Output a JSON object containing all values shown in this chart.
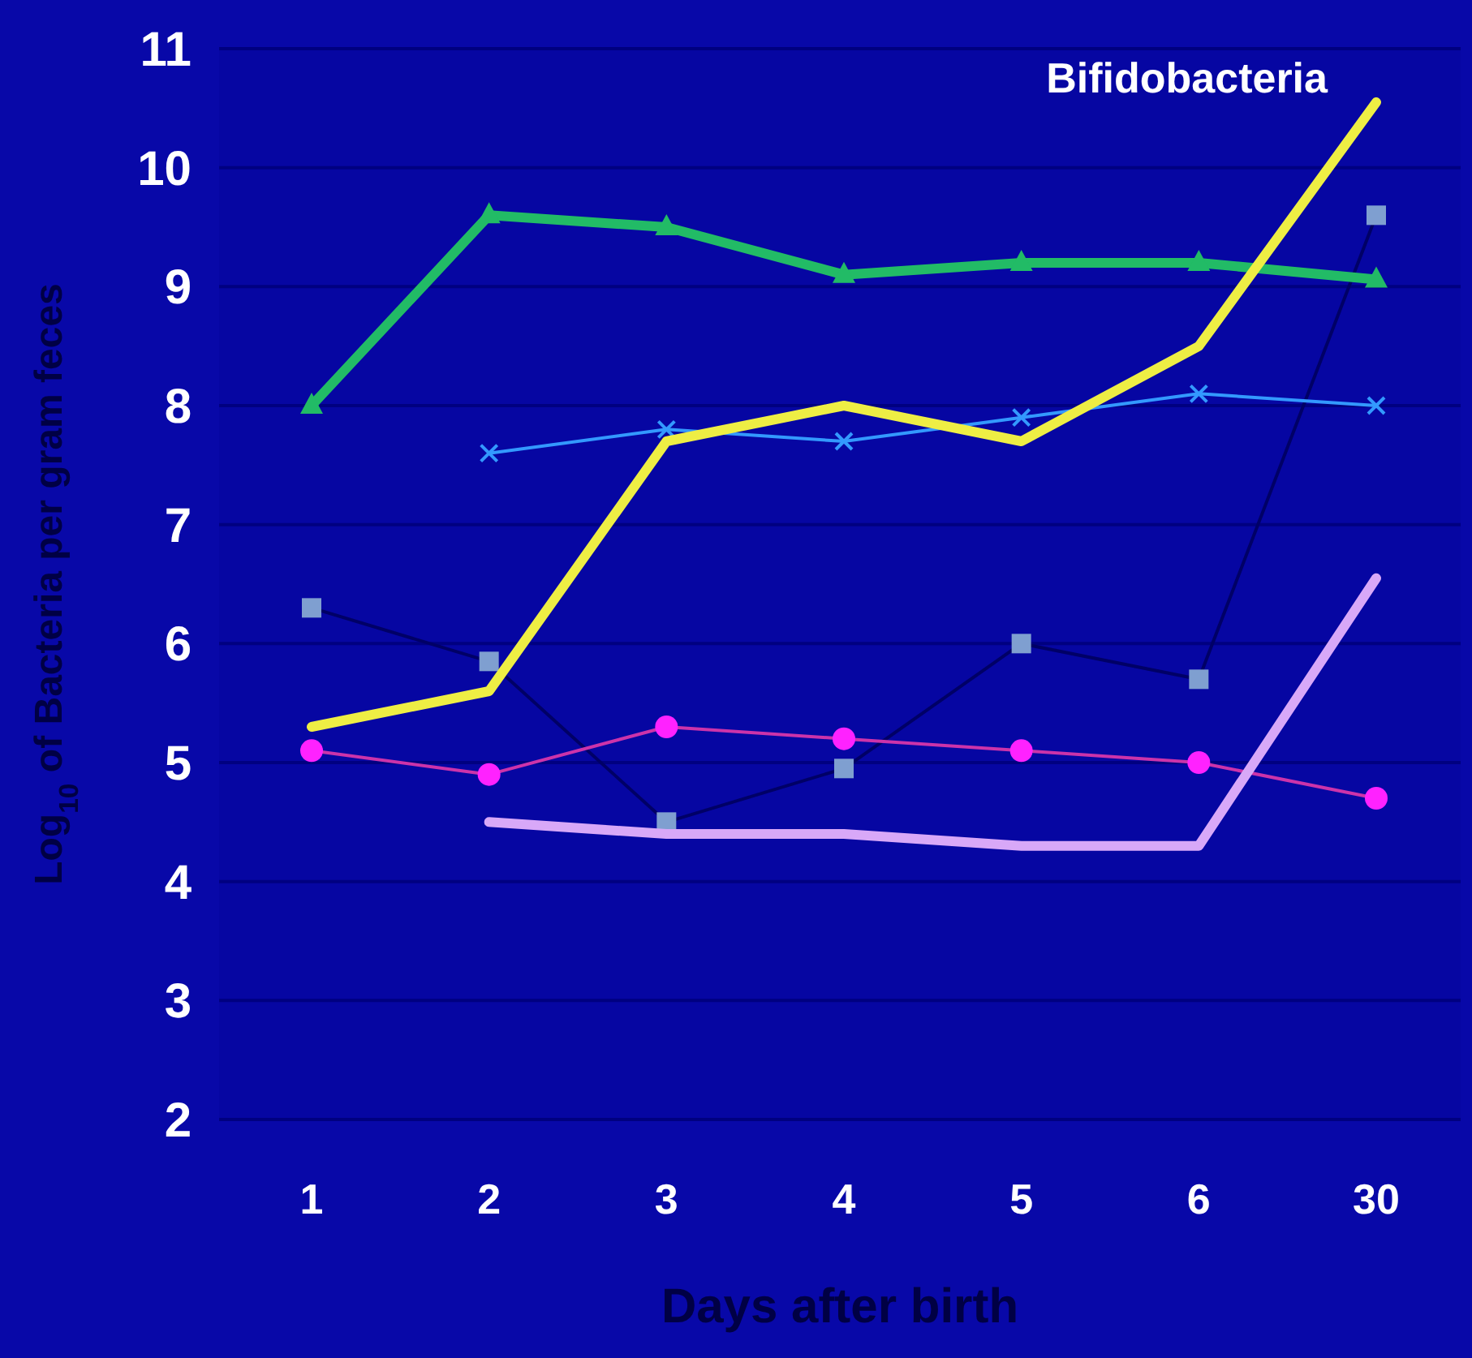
{
  "chart_data": {
    "type": "line",
    "xlabel": "Days after birth",
    "ylabel": "Log$_{10}$ of Bacteria per gram feces",
    "categories": [
      "1",
      "2",
      "3",
      "4",
      "5",
      "6",
      "30"
    ],
    "ylim": [
      2,
      11
    ],
    "yticks": [
      2,
      3,
      4,
      5,
      6,
      7,
      8,
      9,
      10,
      11
    ],
    "grid": "y",
    "series": [
      {
        "color": "#7f9fd0",
        "marker": "square",
        "values": [
          6.3,
          5.85,
          4.5,
          4.95,
          6.0,
          5.7,
          9.6
        ]
      },
      {
        "color": "#ff22ff",
        "marker": "circle",
        "values": [
          5.1,
          4.9,
          5.3,
          5.2,
          5.1,
          5.0,
          4.7
        ]
      },
      {
        "color": "#d8a8f8",
        "marker": "none",
        "values": [
          null,
          4.5,
          4.4,
          4.4,
          4.3,
          4.3,
          6.55
        ]
      },
      {
        "color": "#3399ff",
        "marker": "cross",
        "values": [
          null,
          7.6,
          7.8,
          7.7,
          7.9,
          8.1,
          8.0
        ]
      },
      {
        "color": "#22bb66",
        "marker": "triangle",
        "values": [
          8.0,
          9.6,
          9.5,
          9.1,
          9.2,
          9.2,
          9.06
        ]
      },
      {
        "name": "Bifidobacteria",
        "color": "#eeee44",
        "marker": "none",
        "values": [
          5.3,
          5.6,
          7.7,
          8.0,
          7.7,
          8.5,
          10.55
        ]
      }
    ]
  }
}
